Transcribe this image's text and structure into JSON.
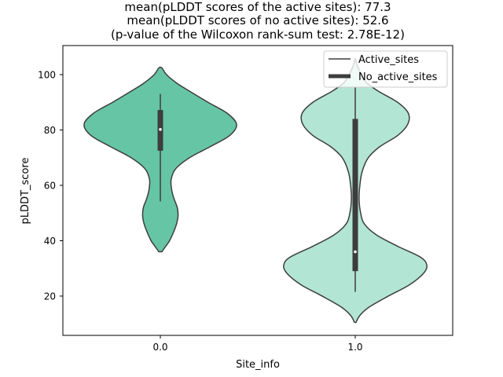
{
  "chart_data": {
    "type": "violin",
    "title_lines": [
      "mean(pLDDT scores of the active sites): 77.3",
      "mean(pLDDT scores of no active sites): 52.6",
      "(p-value of the Wilcoxon rank-sum test: 2.78E-12)"
    ],
    "xlabel": "Site_info",
    "ylabel": "pLDDT_score",
    "ylim": [
      5.8,
      110.5
    ],
    "yticks": [
      20,
      40,
      60,
      80,
      100
    ],
    "categories": [
      "0.0",
      "1.0"
    ],
    "legend": {
      "placement": "top-right",
      "entries": [
        {
          "label": "Active_sites",
          "style": "thin-line"
        },
        {
          "label": "No_active_sites",
          "style": "thick-bar"
        }
      ]
    },
    "series": [
      {
        "name": "Active_sites",
        "category": "0.0",
        "color": "#66c5a5",
        "median": 80.2,
        "q1": 72.5,
        "q3": 87.2,
        "whisker_low": 54.2,
        "whisker_high": 93,
        "density": [
          [
            36,
            0.02
          ],
          [
            38,
            0.07
          ],
          [
            40,
            0.12
          ],
          [
            43,
            0.17
          ],
          [
            46,
            0.21
          ],
          [
            49,
            0.23
          ],
          [
            52,
            0.22
          ],
          [
            55,
            0.18
          ],
          [
            58,
            0.15
          ],
          [
            62,
            0.14
          ],
          [
            66,
            0.2
          ],
          [
            70,
            0.38
          ],
          [
            74,
            0.65
          ],
          [
            78,
            0.9
          ],
          [
            82,
            0.99
          ],
          [
            86,
            0.87
          ],
          [
            90,
            0.62
          ],
          [
            94,
            0.38
          ],
          [
            97,
            0.21
          ],
          [
            100,
            0.08
          ],
          [
            102.4,
            0.02
          ]
        ]
      },
      {
        "name": "No_active_sites",
        "category": "1.0",
        "color": "#b2e5d4",
        "median": 36,
        "q1": 29,
        "q3": 84,
        "whisker_low": 21.5,
        "whisker_high": 95.5,
        "density": [
          [
            10.5,
            0.01
          ],
          [
            13,
            0.06
          ],
          [
            16,
            0.18
          ],
          [
            20,
            0.43
          ],
          [
            24,
            0.7
          ],
          [
            28,
            0.88
          ],
          [
            31,
            0.93
          ],
          [
            34,
            0.85
          ],
          [
            38,
            0.55
          ],
          [
            42,
            0.28
          ],
          [
            46,
            0.12
          ],
          [
            50,
            0.07
          ],
          [
            55,
            0.05
          ],
          [
            60,
            0.06
          ],
          [
            65,
            0.09
          ],
          [
            70,
            0.17
          ],
          [
            74,
            0.32
          ],
          [
            78,
            0.55
          ],
          [
            82,
            0.68
          ],
          [
            86,
            0.69
          ],
          [
            90,
            0.55
          ],
          [
            94,
            0.3
          ],
          [
            97,
            0.15
          ],
          [
            100,
            0.08
          ],
          [
            103,
            0.03
          ],
          [
            105.5,
            0.005
          ]
        ]
      }
    ]
  }
}
